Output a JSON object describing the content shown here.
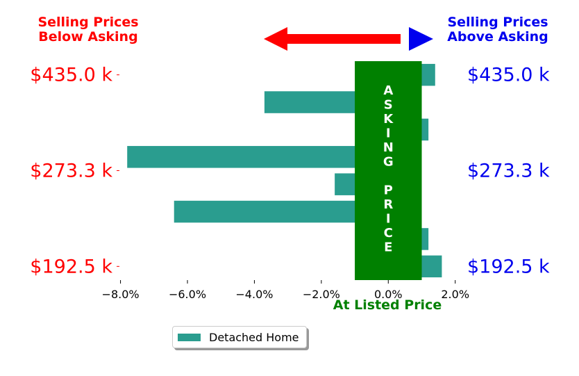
{
  "chart_data": {
    "type": "bar",
    "orientation": "horizontal",
    "x": [
      1.4,
      -3.7,
      1.2,
      -7.8,
      -1.6,
      -6.4,
      1.2,
      1.6
    ],
    "xlim": [
      -8.8,
      2.4
    ],
    "x_ticks": [
      "−8.0%",
      "−6.0%",
      "−4.0%",
      "−2.0%",
      "0.0%",
      "2.0%"
    ],
    "x_tick_values": [
      -8,
      -6,
      -4,
      -2,
      0,
      2
    ],
    "xlabel": "At Listed Price",
    "left_y_tick_labels": [
      "$435.0 k",
      "$273.3 k",
      "$192.5 k"
    ],
    "right_y_tick_labels": [
      "$435.0 k",
      "$273.3 k",
      "$192.5 k"
    ],
    "series": [
      {
        "name": "Detached Home",
        "color": "#2a9d8f"
      }
    ],
    "band_text": [
      "A",
      "S",
      "K",
      "I",
      "N",
      "G",
      "",
      "P",
      "R",
      "I",
      "C",
      "E"
    ],
    "band_range": [
      -1,
      1
    ],
    "band_color": "#008000",
    "annotation_left": [
      "Selling Prices",
      "Below Asking"
    ],
    "annotation_right": [
      "Selling Prices",
      "Above Asking"
    ],
    "colors": {
      "left": "#ff0000",
      "right": "#0000ee",
      "center": "#008000"
    },
    "legend_position": "bottom-center",
    "grid": false
  }
}
